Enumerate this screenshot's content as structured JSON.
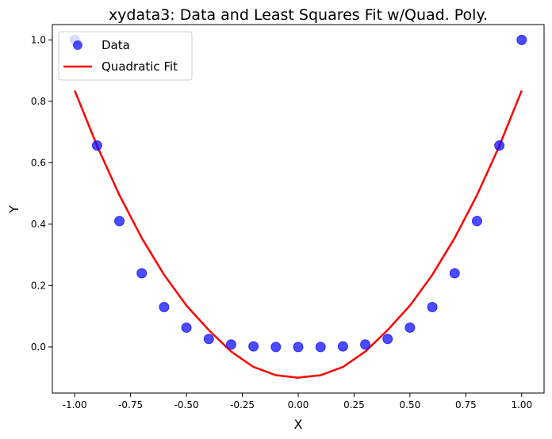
{
  "chart_data": {
    "type": "scatter",
    "title": "xydata3: Data and Least Squares Fit w/Quad. Poly.",
    "xlabel": "X",
    "ylabel": "Y",
    "xlim": [
      -1.1,
      1.1
    ],
    "ylim": [
      -0.15,
      1.05
    ],
    "xticks": [
      -1.0,
      -0.75,
      -0.5,
      -0.25,
      0.0,
      0.25,
      0.5,
      0.75,
      1.0
    ],
    "xtick_labels": [
      "-1.00",
      "-0.75",
      "-0.50",
      "-0.25",
      "0.00",
      "0.25",
      "0.50",
      "0.75",
      "1.00"
    ],
    "yticks": [
      0.0,
      0.2,
      0.4,
      0.6,
      0.8,
      1.0
    ],
    "ytick_labels": [
      "0.0",
      "0.2",
      "0.4",
      "0.6",
      "0.8",
      "1.0"
    ],
    "grid": false,
    "legend_position": "top-left",
    "series": [
      {
        "name": "Data",
        "kind": "scatter",
        "color": "#0000ff",
        "x": [
          -1.0,
          -0.9,
          -0.8,
          -0.7,
          -0.6,
          -0.5,
          -0.4,
          -0.3,
          -0.2,
          -0.1,
          0.0,
          0.1,
          0.2,
          0.3,
          0.4,
          0.5,
          0.6,
          0.7,
          0.8,
          0.9,
          1.0
        ],
        "y": [
          1.0,
          0.656,
          0.41,
          0.24,
          0.13,
          0.063,
          0.026,
          0.008,
          0.002,
          0.0,
          0.0,
          0.0,
          0.002,
          0.008,
          0.026,
          0.063,
          0.13,
          0.24,
          0.41,
          0.656,
          1.0
        ]
      },
      {
        "name": "Quadratic Fit",
        "kind": "line",
        "color": "#ff0000",
        "x": [
          -1.0,
          -0.9,
          -0.8,
          -0.7,
          -0.6,
          -0.5,
          -0.4,
          -0.3,
          -0.2,
          -0.1,
          0.0,
          0.1,
          0.2,
          0.3,
          0.4,
          0.5,
          0.6,
          0.7,
          0.8,
          0.9,
          1.0
        ],
        "y": [
          0.835,
          0.655,
          0.495,
          0.355,
          0.235,
          0.135,
          0.055,
          -0.015,
          -0.065,
          -0.092,
          -0.1,
          -0.092,
          -0.065,
          -0.015,
          0.055,
          0.135,
          0.235,
          0.355,
          0.495,
          0.655,
          0.835
        ]
      }
    ]
  }
}
